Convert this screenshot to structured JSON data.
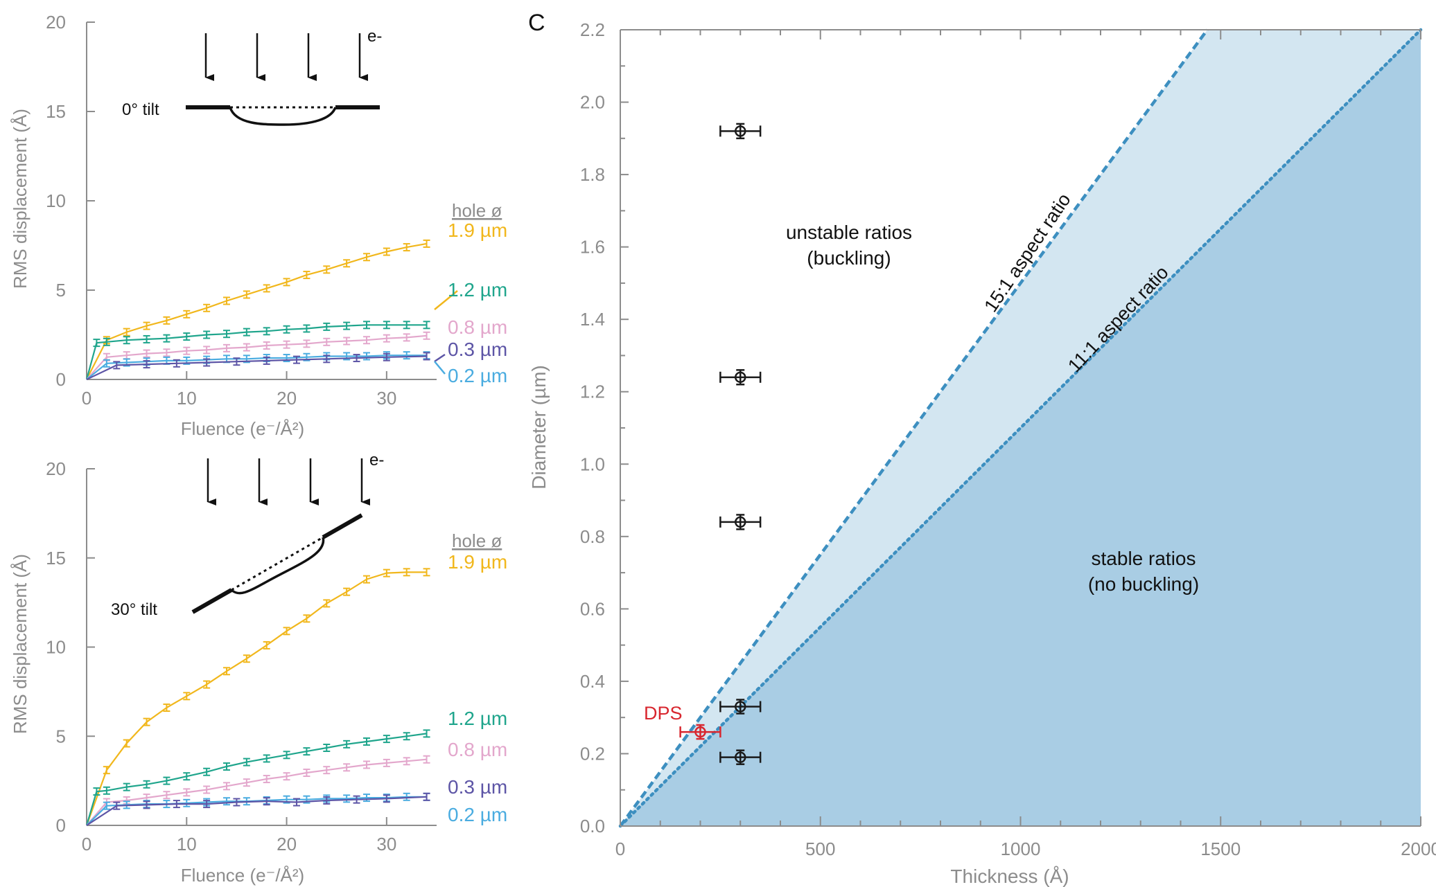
{
  "panel_letter": "C",
  "chart_data": [
    {
      "type": "line",
      "id": "panel_a",
      "inset_label": "0° tilt",
      "beam_label": "e-",
      "legend_title": "hole ø",
      "xlabel": "Fluence (e⁻/Å²)",
      "ylabel": "RMS displacement (Å)",
      "xlim": [
        0,
        35
      ],
      "ylim": [
        0,
        20
      ],
      "xticks": [
        0,
        10,
        20,
        30
      ],
      "yticks": [
        0,
        5,
        10,
        15,
        20
      ],
      "series": [
        {
          "name": "1.9 µm",
          "color": "#f1b71c",
          "x": [
            0,
            2,
            4,
            6,
            8,
            10,
            12,
            14,
            16,
            18,
            20,
            22,
            24,
            26,
            28,
            30,
            32,
            34
          ],
          "y": [
            0,
            2.2,
            2.65,
            3.0,
            3.3,
            3.65,
            4.0,
            4.4,
            4.75,
            5.1,
            5.45,
            5.85,
            6.15,
            6.5,
            6.85,
            7.15,
            7.4,
            7.6
          ]
        },
        {
          "name": "1.2 µm",
          "color": "#1fa58c",
          "x": [
            0,
            1,
            2,
            4,
            6,
            8,
            10,
            12,
            14,
            16,
            18,
            20,
            22,
            24,
            26,
            28,
            30,
            32,
            34
          ],
          "y": [
            0,
            2.05,
            2.1,
            2.2,
            2.25,
            2.3,
            2.4,
            2.5,
            2.55,
            2.65,
            2.7,
            2.8,
            2.85,
            2.95,
            3.0,
            3.05,
            3.05,
            3.05,
            3.05
          ]
        },
        {
          "name": "0.8 µm",
          "color": "#e3a7cc",
          "x": [
            0,
            2,
            4,
            6,
            8,
            10,
            12,
            14,
            16,
            18,
            20,
            22,
            24,
            26,
            28,
            30,
            32,
            34
          ],
          "y": [
            0,
            1.25,
            1.35,
            1.45,
            1.5,
            1.6,
            1.65,
            1.75,
            1.8,
            1.9,
            1.95,
            2.0,
            2.1,
            2.15,
            2.2,
            2.3,
            2.35,
            2.45
          ]
        },
        {
          "name": "0.3 µm",
          "color": "#5d55a6",
          "x": [
            0,
            3,
            6,
            9,
            12,
            15,
            18,
            21,
            24,
            27,
            30,
            34
          ],
          "y": [
            0,
            0.8,
            0.85,
            0.9,
            0.95,
            1.0,
            1.05,
            1.1,
            1.15,
            1.2,
            1.25,
            1.3
          ]
        },
        {
          "name": "0.2 µm",
          "color": "#4aace0",
          "x": [
            0,
            2,
            4,
            6,
            8,
            10,
            12,
            14,
            16,
            18,
            20,
            22,
            24,
            26,
            28,
            30,
            32,
            34
          ],
          "y": [
            0,
            0.9,
            0.95,
            1.0,
            1.05,
            1.05,
            1.1,
            1.15,
            1.15,
            1.2,
            1.2,
            1.25,
            1.3,
            1.3,
            1.3,
            1.35,
            1.35,
            1.35
          ]
        }
      ]
    },
    {
      "type": "line",
      "id": "panel_b",
      "inset_label": "30° tilt",
      "beam_label": "e-",
      "legend_title": "hole ø",
      "xlabel": "Fluence (e⁻/Å²)",
      "ylabel": "RMS displacement (Å)",
      "xlim": [
        0,
        35
      ],
      "ylim": [
        0,
        20
      ],
      "xticks": [
        0,
        10,
        20,
        30
      ],
      "yticks": [
        0,
        5,
        10,
        15,
        20
      ],
      "series": [
        {
          "name": "1.9 µm",
          "color": "#f1b71c",
          "x": [
            0,
            2,
            4,
            6,
            8,
            10,
            12,
            14,
            16,
            18,
            20,
            22,
            24,
            26,
            28,
            30,
            32,
            34
          ],
          "y": [
            0,
            3.1,
            4.6,
            5.8,
            6.6,
            7.25,
            7.9,
            8.65,
            9.35,
            10.1,
            10.9,
            11.6,
            12.45,
            13.1,
            13.8,
            14.15,
            14.2,
            14.2
          ]
        },
        {
          "name": "1.2 µm",
          "color": "#1fa58c",
          "x": [
            0,
            1,
            2,
            4,
            6,
            8,
            10,
            12,
            14,
            16,
            18,
            20,
            22,
            24,
            26,
            28,
            30,
            32,
            34
          ],
          "y": [
            0,
            1.9,
            1.95,
            2.15,
            2.3,
            2.5,
            2.75,
            3.0,
            3.3,
            3.55,
            3.75,
            3.95,
            4.15,
            4.35,
            4.55,
            4.7,
            4.85,
            5.0,
            5.15
          ]
        },
        {
          "name": "0.8 µm",
          "color": "#e3a7cc",
          "x": [
            0,
            2,
            4,
            6,
            8,
            10,
            12,
            14,
            16,
            18,
            20,
            22,
            24,
            26,
            28,
            30,
            32,
            34
          ],
          "y": [
            0,
            1.3,
            1.4,
            1.55,
            1.7,
            1.85,
            2.0,
            2.2,
            2.4,
            2.6,
            2.75,
            2.95,
            3.1,
            3.25,
            3.4,
            3.5,
            3.6,
            3.7
          ]
        },
        {
          "name": "0.3 µm",
          "color": "#5d55a6",
          "x": [
            0,
            3,
            6,
            9,
            12,
            15,
            18,
            21,
            24,
            27,
            30,
            34
          ],
          "y": [
            0,
            1.1,
            1.15,
            1.2,
            1.2,
            1.3,
            1.35,
            1.3,
            1.4,
            1.45,
            1.5,
            1.6
          ]
        },
        {
          "name": "0.2 µm",
          "color": "#4aace0",
          "x": [
            0,
            2,
            4,
            6,
            8,
            10,
            12,
            14,
            16,
            18,
            20,
            22,
            24,
            26,
            28,
            30,
            32,
            34
          ],
          "y": [
            0,
            1.1,
            1.15,
            1.2,
            1.2,
            1.25,
            1.3,
            1.35,
            1.35,
            1.4,
            1.45,
            1.45,
            1.5,
            1.5,
            1.55,
            1.55,
            1.6,
            1.6
          ]
        }
      ]
    },
    {
      "type": "scatter",
      "id": "panel_c",
      "xlabel": "Thickness (Å)",
      "ylabel": "Diameter (µm)",
      "xlim": [
        0,
        2000
      ],
      "ylim": [
        0,
        2.2
      ],
      "xticks": [
        0,
        500,
        1000,
        1500,
        2000
      ],
      "yticks": [
        0.0,
        0.2,
        0.4,
        0.6,
        0.8,
        1.0,
        1.2,
        1.4,
        1.6,
        1.8,
        2.0,
        2.2
      ],
      "ytick_labels": [
        "0.0",
        "0.2",
        "0.4",
        "0.6",
        "0.8",
        "1.0",
        "1.2",
        "1.4",
        "1.6",
        "1.8",
        "2.0",
        "2.2"
      ],
      "region_labels": {
        "unstable": [
          "unstable ratios",
          "(buckling)"
        ],
        "stable": [
          "stable ratios",
          "(no buckling)"
        ]
      },
      "lines": [
        {
          "label": "15:1 aspect ratio",
          "ratio": 15,
          "style": "dashed",
          "color": "#3d8fc0"
        },
        {
          "label": "11:1 aspect ratio",
          "ratio": 11,
          "style": "dotted",
          "color": "#3d8fc0"
        }
      ],
      "region_colors": {
        "between": "#d3e6f1",
        "stable": "#a9cde4"
      },
      "points": [
        {
          "x": 300,
          "y": 1.92,
          "xerr": 50,
          "yerr": 0.02,
          "color": "#1a1a1a"
        },
        {
          "x": 300,
          "y": 1.24,
          "xerr": 50,
          "yerr": 0.02,
          "color": "#1a1a1a"
        },
        {
          "x": 300,
          "y": 0.84,
          "xerr": 50,
          "yerr": 0.02,
          "color": "#1a1a1a"
        },
        {
          "x": 300,
          "y": 0.33,
          "xerr": 50,
          "yerr": 0.01,
          "color": "#1a1a1a"
        },
        {
          "x": 300,
          "y": 0.19,
          "xerr": 50,
          "yerr": 0.01,
          "color": "#1a1a1a"
        },
        {
          "x": 200,
          "y": 0.26,
          "xerr": 50,
          "yerr": 0.01,
          "color": "#d8262e",
          "label": "DPS"
        }
      ]
    }
  ]
}
